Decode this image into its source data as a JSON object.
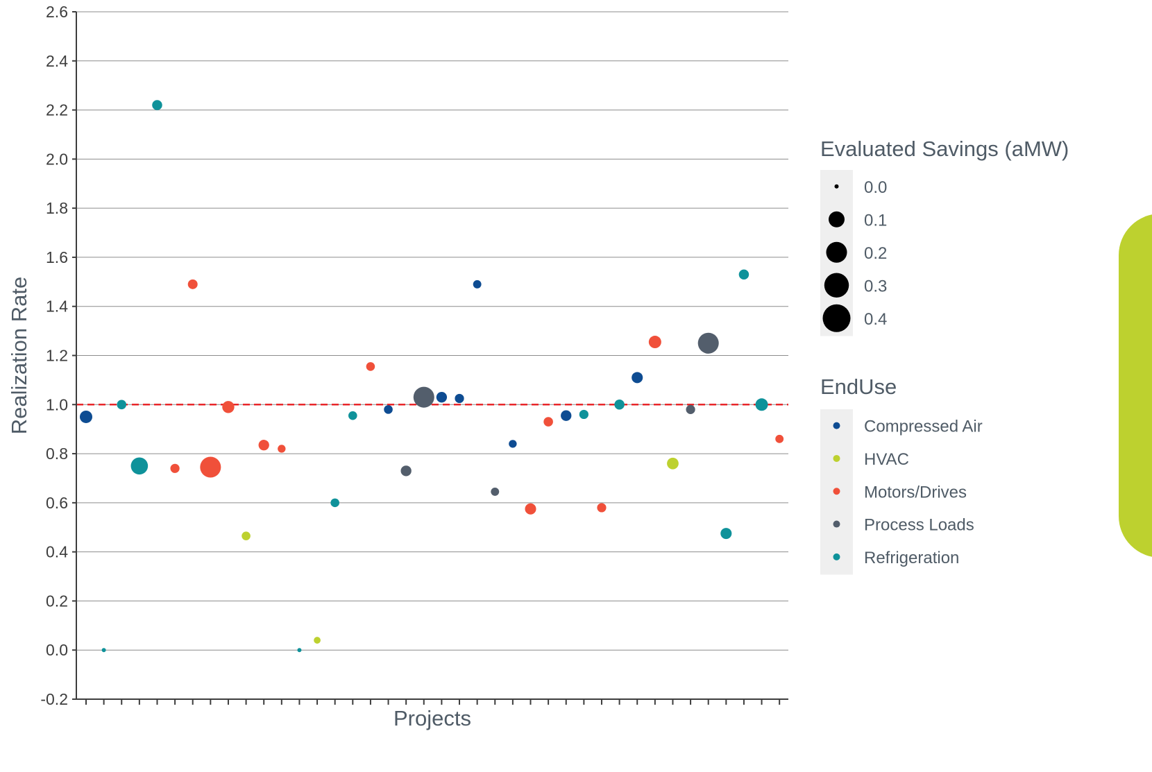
{
  "chart_data": {
    "type": "scatter",
    "title": "",
    "xlabel": "Projects",
    "ylabel": "Realization Rate",
    "ylim": [
      -0.2,
      2.6
    ],
    "yticks": [
      -0.2,
      0.0,
      0.2,
      0.4,
      0.6,
      0.8,
      1.0,
      1.2,
      1.4,
      1.6,
      1.8,
      2.0,
      2.2,
      2.4,
      2.6
    ],
    "ytick_labels": [
      "-0.2",
      "0.0",
      "0.2",
      "0.4",
      "0.6",
      "0.8",
      "1.0",
      "1.2",
      "1.4",
      "1.6",
      "1.8",
      "2.0",
      "2.2",
      "2.4",
      "2.6"
    ],
    "grid": "horizontal",
    "reference_line": {
      "y": 1.0,
      "style": "dashed",
      "color": "#e8262a"
    },
    "project_count": 40,
    "size_legend": {
      "title": "Evaluated Savings (aMW)",
      "placement": "right",
      "entries": [
        {
          "label": "0.0",
          "value": 0.0
        },
        {
          "label": "0.1",
          "value": 0.1
        },
        {
          "label": "0.2",
          "value": 0.2
        },
        {
          "label": "0.3",
          "value": 0.3
        },
        {
          "label": "0.4",
          "value": 0.4
        }
      ]
    },
    "color_legend": {
      "title": "EndUse",
      "placement": "right",
      "entries": [
        {
          "name": "Compressed Air",
          "color": "#0e4c92"
        },
        {
          "name": "HVAC",
          "color": "#bdd12f"
        },
        {
          "name": "Motors/Drives",
          "color": "#f0503a"
        },
        {
          "name": "Process Loads",
          "color": "#535e6c"
        },
        {
          "name": "Refrigeration",
          "color": "#0f929a"
        }
      ]
    },
    "points": [
      {
        "project": 1,
        "y": 0.95,
        "enduse": "Compressed Air",
        "savings": 0.05
      },
      {
        "project": 2,
        "y": 0.0,
        "enduse": "Refrigeration",
        "savings": 0.0
      },
      {
        "project": 3,
        "y": 1.0,
        "enduse": "Refrigeration",
        "savings": 0.02
      },
      {
        "project": 4,
        "y": 0.75,
        "enduse": "Refrigeration",
        "savings": 0.12
      },
      {
        "project": 5,
        "y": 2.22,
        "enduse": "Refrigeration",
        "savings": 0.025
      },
      {
        "project": 6,
        "y": 0.74,
        "enduse": "Motors/Drives",
        "savings": 0.018
      },
      {
        "project": 7,
        "y": 1.49,
        "enduse": "Motors/Drives",
        "savings": 0.022
      },
      {
        "project": 8,
        "y": 0.745,
        "enduse": "Motors/Drives",
        "savings": 0.2
      },
      {
        "project": 9,
        "y": 0.99,
        "enduse": "Motors/Drives",
        "savings": 0.045
      },
      {
        "project": 10,
        "y": 0.465,
        "enduse": "HVAC",
        "savings": 0.015
      },
      {
        "project": 11,
        "y": 0.835,
        "enduse": "Motors/Drives",
        "savings": 0.03
      },
      {
        "project": 12,
        "y": 0.82,
        "enduse": "Motors/Drives",
        "savings": 0.01
      },
      {
        "project": 13,
        "y": 0.0,
        "enduse": "Refrigeration",
        "savings": 0.0
      },
      {
        "project": 14,
        "y": 0.04,
        "enduse": "HVAC",
        "savings": 0.005
      },
      {
        "project": 15,
        "y": 0.6,
        "enduse": "Refrigeration",
        "savings": 0.015
      },
      {
        "project": 16,
        "y": 0.955,
        "enduse": "Refrigeration",
        "savings": 0.015
      },
      {
        "project": 17,
        "y": 1.155,
        "enduse": "Motors/Drives",
        "savings": 0.015
      },
      {
        "project": 18,
        "y": 0.98,
        "enduse": "Compressed Air",
        "savings": 0.015
      },
      {
        "project": 19,
        "y": 0.73,
        "enduse": "Process Loads",
        "savings": 0.03
      },
      {
        "project": 20,
        "y": 1.03,
        "enduse": "Process Loads",
        "savings": 0.2
      },
      {
        "project": 21,
        "y": 1.03,
        "enduse": "Compressed Air",
        "savings": 0.03
      },
      {
        "project": 22,
        "y": 1.025,
        "enduse": "Compressed Air",
        "savings": 0.018
      },
      {
        "project": 23,
        "y": 1.49,
        "enduse": "Compressed Air",
        "savings": 0.012
      },
      {
        "project": 24,
        "y": 0.645,
        "enduse": "Process Loads",
        "savings": 0.012
      },
      {
        "project": 25,
        "y": 0.84,
        "enduse": "Compressed Air",
        "savings": 0.01
      },
      {
        "project": 26,
        "y": 0.575,
        "enduse": "Motors/Drives",
        "savings": 0.035
      },
      {
        "project": 27,
        "y": 0.93,
        "enduse": "Motors/Drives",
        "savings": 0.02
      },
      {
        "project": 28,
        "y": 0.955,
        "enduse": "Compressed Air",
        "savings": 0.03
      },
      {
        "project": 29,
        "y": 0.96,
        "enduse": "Refrigeration",
        "savings": 0.018
      },
      {
        "project": 30,
        "y": 0.58,
        "enduse": "Motors/Drives",
        "savings": 0.018
      },
      {
        "project": 31,
        "y": 1.0,
        "enduse": "Refrigeration",
        "savings": 0.025
      },
      {
        "project": 32,
        "y": 1.11,
        "enduse": "Compressed Air",
        "savings": 0.035
      },
      {
        "project": 33,
        "y": 1.255,
        "enduse": "Motors/Drives",
        "savings": 0.05
      },
      {
        "project": 34,
        "y": 0.76,
        "enduse": "HVAC",
        "savings": 0.04
      },
      {
        "project": 35,
        "y": 0.98,
        "enduse": "Process Loads",
        "savings": 0.018
      },
      {
        "project": 36,
        "y": 1.25,
        "enduse": "Process Loads",
        "savings": 0.2
      },
      {
        "project": 37,
        "y": 0.475,
        "enduse": "Refrigeration",
        "savings": 0.035
      },
      {
        "project": 38,
        "y": 1.53,
        "enduse": "Refrigeration",
        "savings": 0.025
      },
      {
        "project": 39,
        "y": 1.0,
        "enduse": "Refrigeration",
        "savings": 0.05
      },
      {
        "project": 40,
        "y": 0.86,
        "enduse": "Motors/Drives",
        "savings": 0.012
      }
    ]
  },
  "decoration": {
    "side_panel": "green-rounded-panel",
    "side_panel_color": "#bdd12f"
  }
}
